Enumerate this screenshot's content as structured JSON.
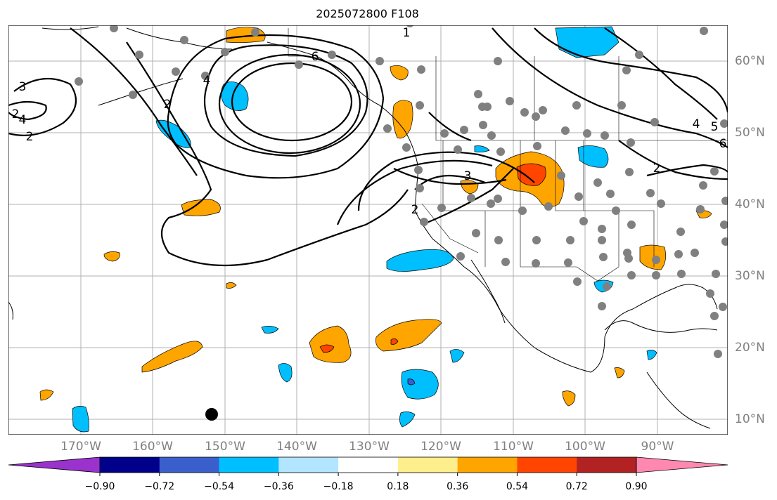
{
  "title": "2025072800 F108",
  "longitude_labels": [
    "170°W",
    "160°W",
    "150°W",
    "140°W",
    "130°W",
    "120°W",
    "110°W",
    "100°W",
    "90°W"
  ],
  "latitude_labels": [
    "60°N",
    "50°N",
    "40°N",
    "30°N",
    "20°N",
    "10°N"
  ],
  "contour_labels": [
    "3",
    "2",
    "4",
    "2",
    "2",
    "6",
    "4",
    "3",
    "2",
    "1",
    "4",
    "5",
    "2",
    "6"
  ],
  "colorbar": {
    "tick_labels": [
      "−0.90",
      "−0.72",
      "−0.54",
      "−0.36",
      "−0.18",
      "0.18",
      "0.36",
      "0.54",
      "0.72",
      "0.90"
    ],
    "colors": [
      "#9a32cd",
      "#00008b",
      "#3a5fcd",
      "#00bfff",
      "#b2e5ff",
      "#ffffff",
      "#ffee8c",
      "#ffa500",
      "#ff4500",
      "#b22222",
      "#ff88b0"
    ]
  },
  "colors": {
    "land_border": "#000000",
    "grid": "#b0b0b0",
    "station_dot": "#808080",
    "axis_text": "#808080"
  }
}
